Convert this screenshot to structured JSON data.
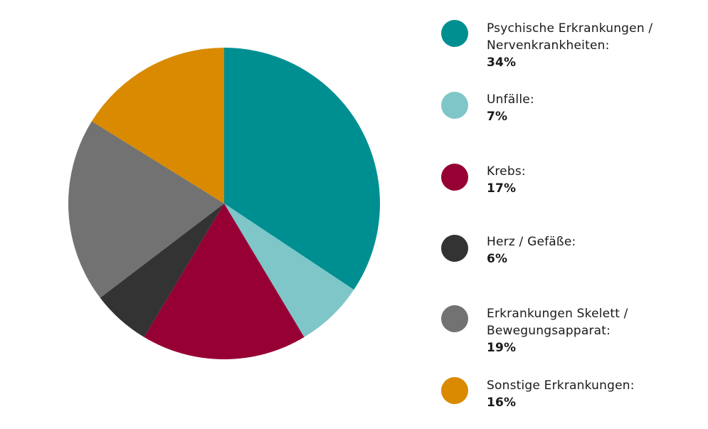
{
  "chart_data": {
    "type": "pie",
    "slices": [
      {
        "label": "Psychische Erkrankungen /\nNervenkrankheiten:",
        "value": 34,
        "value_label": "34%",
        "color": "#008f91"
      },
      {
        "label": "Unfälle:",
        "value": 7,
        "value_label": "7%",
        "color": "#7fc6c8"
      },
      {
        "label": "Krebs:",
        "value": 17,
        "value_label": "17%",
        "color": "#960035"
      },
      {
        "label": "Herz / Gefäße:",
        "value": 6,
        "value_label": "6%",
        "color": "#333333"
      },
      {
        "label": "Erkrankungen Skelett /\nBewegungsapparat:",
        "value": 19,
        "value_label": "19%",
        "color": "#727272"
      },
      {
        "label": "Sonstige Erkrankungen:",
        "value": 16,
        "value_label": "16%",
        "color": "#d98a00"
      }
    ],
    "legend_position": "right",
    "start_angle": "12 o'clock",
    "direction": "clockwise"
  }
}
